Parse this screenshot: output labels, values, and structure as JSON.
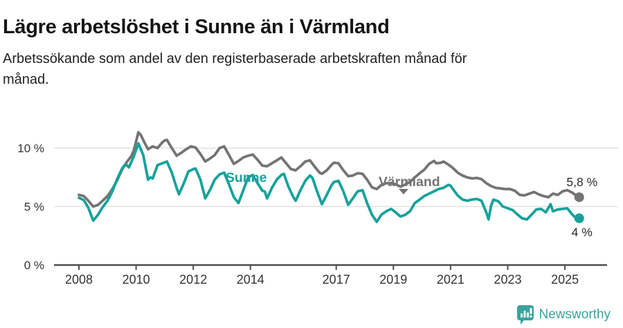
{
  "header": {
    "title": "Lägre arbetslöshet i Sunne än i Värmland",
    "subtitle_line1": "Arbetssökande som andel av den registerbaserade arbetskraften månad för",
    "subtitle_line2": "månad."
  },
  "footer": {
    "brand": "Newsworthy",
    "logo_icon": "newsworthy-badge-icon"
  },
  "colors": {
    "sunne": "#16a29a",
    "varmland": "#747474",
    "grid": "#e0e0e0",
    "axis": "#4d4d4d",
    "tick_text": "#333333",
    "value_text": "#2b2b2b",
    "brand": "#3aa3a0",
    "title_text": "#151515"
  },
  "chart_data": {
    "type": "line",
    "title": "Lägre arbetslöshet i Sunne än i Värmland",
    "subtitle": "Arbetssökande som andel av den registerbaserade arbetskraften månad för månad.",
    "x_unit": "year (monthly data)",
    "ylim": [
      0,
      12
    ],
    "grid": "horizontal",
    "legend_position": "inline-labels",
    "y_ticks": [
      {
        "value": 0,
        "label": "0 %"
      },
      {
        "value": 5,
        "label": "5 %"
      },
      {
        "value": 10,
        "label": "10 %"
      }
    ],
    "x_ticks": [
      2008,
      2010,
      2012,
      2014,
      2017,
      2019,
      2021,
      2023,
      2025
    ],
    "series": [
      {
        "name": "Värmland",
        "color": "#747474",
        "end_label": "5,8 %",
        "label_anchor": {
          "year": 2018.48,
          "pct": 6.75
        },
        "points": [
          [
            2008.0,
            6.0
          ],
          [
            2008.17,
            5.9
          ],
          [
            2008.33,
            5.5
          ],
          [
            2008.5,
            5.0
          ],
          [
            2008.67,
            5.15
          ],
          [
            2008.83,
            5.5
          ],
          [
            2009.0,
            5.9
          ],
          [
            2009.17,
            6.5
          ],
          [
            2009.33,
            7.2
          ],
          [
            2009.5,
            8.1
          ],
          [
            2009.67,
            8.8
          ],
          [
            2009.83,
            9.3
          ],
          [
            2009.92,
            9.8
          ],
          [
            2010.08,
            11.35
          ],
          [
            2010.17,
            11.1
          ],
          [
            2010.33,
            10.3
          ],
          [
            2010.42,
            9.9
          ],
          [
            2010.58,
            10.15
          ],
          [
            2010.75,
            10.0
          ],
          [
            2010.92,
            10.5
          ],
          [
            2011.0,
            10.65
          ],
          [
            2011.08,
            10.7
          ],
          [
            2011.25,
            10.0
          ],
          [
            2011.42,
            9.35
          ],
          [
            2011.58,
            9.6
          ],
          [
            2011.75,
            9.9
          ],
          [
            2011.92,
            10.15
          ],
          [
            2012.08,
            10.05
          ],
          [
            2012.25,
            9.5
          ],
          [
            2012.42,
            8.85
          ],
          [
            2012.58,
            9.1
          ],
          [
            2012.75,
            9.4
          ],
          [
            2012.92,
            10.0
          ],
          [
            2013.08,
            10.15
          ],
          [
            2013.25,
            9.4
          ],
          [
            2013.42,
            8.65
          ],
          [
            2013.58,
            8.9
          ],
          [
            2013.75,
            9.2
          ],
          [
            2013.92,
            9.35
          ],
          [
            2014.08,
            9.45
          ],
          [
            2014.25,
            9.0
          ],
          [
            2014.42,
            8.5
          ],
          [
            2014.58,
            8.45
          ],
          [
            2014.75,
            8.7
          ],
          [
            2014.92,
            8.95
          ],
          [
            2015.08,
            9.2
          ],
          [
            2015.25,
            8.7
          ],
          [
            2015.42,
            8.2
          ],
          [
            2015.58,
            8.1
          ],
          [
            2015.75,
            8.45
          ],
          [
            2015.92,
            8.85
          ],
          [
            2016.08,
            8.95
          ],
          [
            2016.25,
            8.4
          ],
          [
            2016.42,
            7.9
          ],
          [
            2016.5,
            7.8
          ],
          [
            2016.67,
            8.1
          ],
          [
            2016.83,
            8.55
          ],
          [
            2016.92,
            8.75
          ],
          [
            2017.08,
            8.7
          ],
          [
            2017.25,
            8.1
          ],
          [
            2017.42,
            7.6
          ],
          [
            2017.58,
            7.65
          ],
          [
            2017.75,
            7.85
          ],
          [
            2017.92,
            7.8
          ],
          [
            2018.08,
            7.3
          ],
          [
            2018.25,
            6.65
          ],
          [
            2018.42,
            6.5
          ],
          [
            2018.58,
            6.85
          ],
          [
            2018.75,
            7.0
          ],
          [
            2018.92,
            7.0
          ],
          [
            2019.08,
            6.9
          ],
          [
            2019.25,
            6.7
          ],
          [
            2019.42,
            6.9
          ],
          [
            2019.58,
            7.1
          ],
          [
            2019.75,
            7.5
          ],
          [
            2019.92,
            7.85
          ],
          [
            2020.08,
            8.15
          ],
          [
            2020.25,
            8.65
          ],
          [
            2020.42,
            8.9
          ],
          [
            2020.5,
            8.7
          ],
          [
            2020.67,
            8.75
          ],
          [
            2020.75,
            8.85
          ],
          [
            2020.92,
            8.6
          ],
          [
            2021.08,
            8.3
          ],
          [
            2021.25,
            7.9
          ],
          [
            2021.42,
            7.65
          ],
          [
            2021.58,
            7.5
          ],
          [
            2021.75,
            7.4
          ],
          [
            2021.92,
            7.45
          ],
          [
            2022.08,
            7.35
          ],
          [
            2022.25,
            7.0
          ],
          [
            2022.42,
            6.75
          ],
          [
            2022.58,
            6.6
          ],
          [
            2022.75,
            6.55
          ],
          [
            2022.92,
            6.5
          ],
          [
            2023.08,
            6.5
          ],
          [
            2023.25,
            6.35
          ],
          [
            2023.42,
            6.0
          ],
          [
            2023.58,
            5.95
          ],
          [
            2023.75,
            6.1
          ],
          [
            2023.92,
            6.25
          ],
          [
            2024.08,
            6.05
          ],
          [
            2024.25,
            5.9
          ],
          [
            2024.42,
            5.8
          ],
          [
            2024.58,
            6.1
          ],
          [
            2024.75,
            6.0
          ],
          [
            2024.92,
            6.3
          ],
          [
            2025.08,
            6.4
          ],
          [
            2025.25,
            6.2
          ],
          [
            2025.42,
            5.9
          ],
          [
            2025.5,
            5.8
          ]
        ]
      },
      {
        "name": "Sunne",
        "color": "#16a29a",
        "end_label": "4 %",
        "label_anchor": {
          "year": 2013.13,
          "pct": 7.1
        },
        "points": [
          [
            2008.0,
            5.75
          ],
          [
            2008.17,
            5.55
          ],
          [
            2008.33,
            4.9
          ],
          [
            2008.5,
            3.8
          ],
          [
            2008.67,
            4.3
          ],
          [
            2008.83,
            4.95
          ],
          [
            2009.0,
            5.5
          ],
          [
            2009.17,
            6.3
          ],
          [
            2009.33,
            7.3
          ],
          [
            2009.5,
            8.2
          ],
          [
            2009.58,
            8.5
          ],
          [
            2009.67,
            8.55
          ],
          [
            2009.75,
            8.35
          ],
          [
            2009.92,
            9.3
          ],
          [
            2010.08,
            10.4
          ],
          [
            2010.25,
            9.4
          ],
          [
            2010.42,
            7.3
          ],
          [
            2010.5,
            7.5
          ],
          [
            2010.58,
            7.4
          ],
          [
            2010.75,
            8.55
          ],
          [
            2010.92,
            8.7
          ],
          [
            2011.08,
            8.85
          ],
          [
            2011.25,
            7.9
          ],
          [
            2011.42,
            6.6
          ],
          [
            2011.5,
            6.05
          ],
          [
            2011.67,
            7.0
          ],
          [
            2011.83,
            8.0
          ],
          [
            2012.0,
            8.2
          ],
          [
            2012.08,
            8.25
          ],
          [
            2012.25,
            7.3
          ],
          [
            2012.42,
            5.7
          ],
          [
            2012.58,
            6.4
          ],
          [
            2012.75,
            7.3
          ],
          [
            2012.92,
            7.75
          ],
          [
            2013.08,
            7.9
          ],
          [
            2013.25,
            6.9
          ],
          [
            2013.42,
            5.8
          ],
          [
            2013.58,
            5.3
          ],
          [
            2013.75,
            6.4
          ],
          [
            2013.92,
            7.5
          ],
          [
            2014.08,
            7.7
          ],
          [
            2014.25,
            7.0
          ],
          [
            2014.42,
            6.35
          ],
          [
            2014.5,
            6.3
          ],
          [
            2014.58,
            5.7
          ],
          [
            2014.75,
            6.6
          ],
          [
            2014.92,
            7.3
          ],
          [
            2015.08,
            7.7
          ],
          [
            2015.17,
            7.8
          ],
          [
            2015.33,
            6.7
          ],
          [
            2015.5,
            5.8
          ],
          [
            2015.58,
            5.5
          ],
          [
            2015.75,
            6.4
          ],
          [
            2015.92,
            7.2
          ],
          [
            2016.08,
            7.65
          ],
          [
            2016.17,
            7.45
          ],
          [
            2016.33,
            6.3
          ],
          [
            2016.5,
            5.2
          ],
          [
            2016.67,
            6.0
          ],
          [
            2016.83,
            6.8
          ],
          [
            2016.92,
            7.1
          ],
          [
            2017.08,
            7.2
          ],
          [
            2017.25,
            6.3
          ],
          [
            2017.42,
            5.15
          ],
          [
            2017.58,
            5.7
          ],
          [
            2017.75,
            6.3
          ],
          [
            2017.92,
            6.4
          ],
          [
            2018.08,
            5.3
          ],
          [
            2018.25,
            4.3
          ],
          [
            2018.42,
            3.7
          ],
          [
            2018.58,
            4.3
          ],
          [
            2018.75,
            4.6
          ],
          [
            2018.92,
            4.8
          ],
          [
            2019.08,
            4.5
          ],
          [
            2019.25,
            4.15
          ],
          [
            2019.42,
            4.3
          ],
          [
            2019.58,
            4.6
          ],
          [
            2019.75,
            5.3
          ],
          [
            2019.92,
            5.6
          ],
          [
            2020.08,
            5.9
          ],
          [
            2020.25,
            6.1
          ],
          [
            2020.42,
            6.3
          ],
          [
            2020.58,
            6.5
          ],
          [
            2020.75,
            6.6
          ],
          [
            2020.92,
            6.85
          ],
          [
            2021.0,
            6.8
          ],
          [
            2021.08,
            6.5
          ],
          [
            2021.25,
            5.95
          ],
          [
            2021.42,
            5.6
          ],
          [
            2021.58,
            5.5
          ],
          [
            2021.75,
            5.6
          ],
          [
            2021.92,
            5.65
          ],
          [
            2022.08,
            5.5
          ],
          [
            2022.25,
            4.5
          ],
          [
            2022.33,
            3.9
          ],
          [
            2022.42,
            5.1
          ],
          [
            2022.5,
            5.6
          ],
          [
            2022.67,
            5.45
          ],
          [
            2022.83,
            5.0
          ],
          [
            2023.0,
            4.85
          ],
          [
            2023.17,
            4.7
          ],
          [
            2023.33,
            4.35
          ],
          [
            2023.5,
            4.0
          ],
          [
            2023.67,
            3.9
          ],
          [
            2023.83,
            4.3
          ],
          [
            2024.0,
            4.75
          ],
          [
            2024.17,
            4.8
          ],
          [
            2024.33,
            4.5
          ],
          [
            2024.5,
            5.2
          ],
          [
            2024.58,
            4.6
          ],
          [
            2024.75,
            4.75
          ],
          [
            2024.92,
            4.8
          ],
          [
            2025.08,
            4.85
          ],
          [
            2025.25,
            4.35
          ],
          [
            2025.42,
            3.9
          ],
          [
            2025.5,
            4.0
          ]
        ]
      }
    ]
  }
}
